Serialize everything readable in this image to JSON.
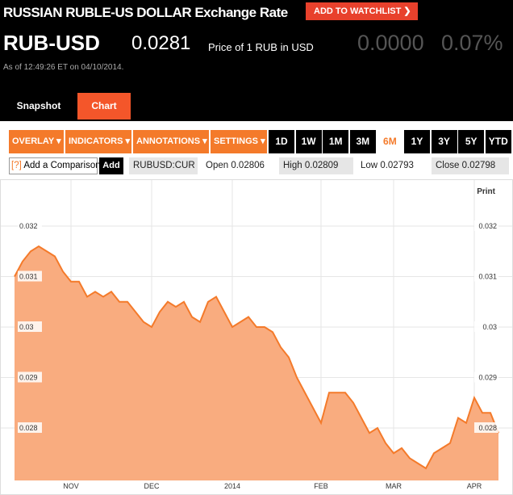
{
  "header": {
    "title": "RUSSIAN RUBLE-US DOLLAR Exchange Rate",
    "watchlist": "ADD TO WATCHLIST",
    "symbol": "RUB-USD",
    "price": "0.0281",
    "price_desc": "Price of 1 RUB in USD",
    "change": "0.0000",
    "change_pct": "0.07%",
    "timestamp": "As of 12:49:26 ET on 04/10/2014."
  },
  "tabs": [
    "Snapshot",
    "Chart"
  ],
  "toolbar": {
    "menus": [
      "OVERLAY",
      "INDICATORS",
      "ANNOTATIONS",
      "SETTINGS"
    ],
    "ranges": [
      "1D",
      "1W",
      "1M",
      "3M",
      "6M",
      "1Y",
      "3Y",
      "5Y",
      "YTD"
    ],
    "active_range": "6M"
  },
  "quote_bar": {
    "help": "[?]",
    "compare": "Add a Comparison",
    "add": "Add",
    "ticker": "RUBUSD:CUR",
    "fields": [
      {
        "label": "Open",
        "value": "0.02806"
      },
      {
        "label": "High",
        "value": "0.02809"
      },
      {
        "label": "Low",
        "value": "0.02793"
      },
      {
        "label": "Close",
        "value": "0.02798"
      }
    ]
  },
  "chart_data": {
    "type": "area",
    "print": "Print",
    "color": "#f47a2a",
    "fill": "#f9ac7f",
    "grid": true,
    "categories": [
      null,
      null,
      null,
      null,
      null,
      null,
      null,
      "NOV",
      null,
      null,
      null,
      null,
      null,
      null,
      null,
      null,
      null,
      "DEC",
      null,
      null,
      null,
      null,
      null,
      null,
      null,
      null,
      null,
      "2014",
      null,
      null,
      null,
      null,
      null,
      null,
      null,
      null,
      null,
      null,
      "FEB",
      null,
      null,
      null,
      null,
      null,
      null,
      null,
      null,
      "MAR",
      null,
      null,
      null,
      null,
      null,
      null,
      null,
      null,
      null,
      "APR",
      null,
      null,
      null
    ],
    "values": [
      0.031,
      0.0313,
      0.0315,
      0.0316,
      0.0315,
      0.0314,
      0.0311,
      0.0309,
      0.0309,
      0.0306,
      0.0307,
      0.0306,
      0.0307,
      0.0305,
      0.0305,
      0.0303,
      0.0301,
      0.03,
      0.0303,
      0.0305,
      0.0304,
      0.0305,
      0.0302,
      0.0301,
      0.0305,
      0.0306,
      0.0303,
      0.03,
      0.0301,
      0.0302,
      0.03,
      0.03,
      0.0299,
      0.0296,
      0.0294,
      0.029,
      0.0287,
      0.0284,
      0.0281,
      0.0287,
      0.0287,
      0.0287,
      0.0285,
      0.0282,
      0.0279,
      0.028,
      0.0277,
      0.0275,
      0.0276,
      0.0274,
      0.0273,
      0.0272,
      0.0275,
      0.0276,
      0.0277,
      0.0282,
      0.0281,
      0.0286,
      0.0283,
      0.0283,
      0.0279
    ],
    "ylim": [
      0.02696,
      0.0328
    ],
    "yticks": [
      0.028,
      0.029,
      0.03,
      0.031,
      0.032
    ]
  }
}
